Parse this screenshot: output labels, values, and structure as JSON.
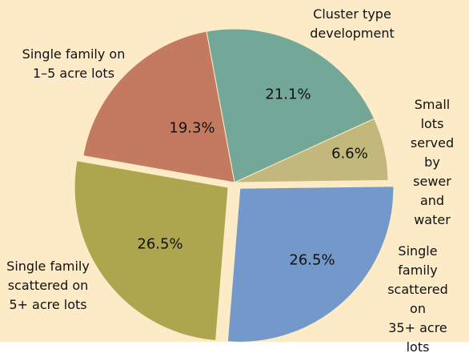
{
  "chart_data": {
    "type": "pie",
    "categories": [
      "Cluster type\ndevelopment",
      "Small lots\nserved by\nsewer and\nwater",
      "Single family\nscattered on\n35+ acre lots",
      "Single family\nscattered on\n5+ acre lots",
      "Single family on\n1–5 acre lots"
    ],
    "values": [
      21.1,
      6.6,
      26.5,
      26.5,
      19.3
    ],
    "value_labels": [
      "21.1%",
      "6.6%",
      "26.5%",
      "26.5%",
      "19.3%"
    ],
    "colors": [
      "#73a797",
      "#c3b87b",
      "#7299c9",
      "#ada64f",
      "#c47a61"
    ],
    "exploded": [
      false,
      false,
      true,
      true,
      false
    ]
  }
}
